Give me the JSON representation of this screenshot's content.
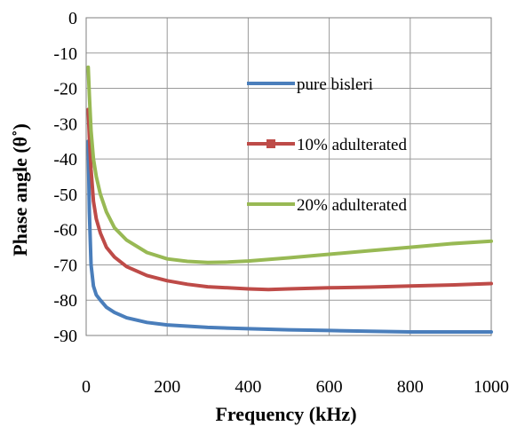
{
  "chart_data": {
    "type": "line",
    "title": "",
    "xlabel": "Frequency (kHz)",
    "ylabel": "Phase angle (θ˚)",
    "xlim": [
      0,
      1000
    ],
    "ylim": [
      -90,
      0
    ],
    "xticks": [
      0,
      200,
      400,
      600,
      800,
      1000
    ],
    "yticks": [
      0,
      -10,
      -20,
      -30,
      -40,
      -50,
      -60,
      -70,
      -80,
      -90
    ],
    "grid": true,
    "legend_position": "center-right",
    "series": [
      {
        "name": "pure bisleri",
        "color": "#4a7ebb",
        "x": [
          5,
          8,
          12,
          18,
          25,
          35,
          50,
          70,
          100,
          150,
          200,
          300,
          400,
          500,
          600,
          700,
          800,
          900,
          1000
        ],
        "y": [
          -35,
          -55,
          -70,
          -76,
          -78.5,
          -80,
          -82,
          -83.5,
          -85,
          -86.3,
          -87,
          -87.7,
          -88.1,
          -88.4,
          -88.6,
          -88.8,
          -89,
          -89,
          -89
        ]
      },
      {
        "name": "10% adulterated",
        "color": "#be4b48",
        "x": [
          5,
          8,
          12,
          18,
          25,
          35,
          50,
          70,
          100,
          150,
          200,
          250,
          300,
          400,
          450,
          500,
          600,
          700,
          800,
          900,
          1000
        ],
        "y": [
          -26,
          -34,
          -43,
          -52,
          -57,
          -61,
          -65,
          -67.8,
          -70.5,
          -73,
          -74.5,
          -75.5,
          -76.2,
          -76.8,
          -77,
          -76.8,
          -76.5,
          -76.3,
          -76,
          -75.7,
          -75.3
        ]
      },
      {
        "name": "20% adulterated",
        "color": "#98b954",
        "x": [
          5,
          8,
          12,
          18,
          25,
          35,
          50,
          70,
          100,
          150,
          200,
          250,
          300,
          350,
          400,
          500,
          600,
          700,
          800,
          900,
          1000
        ],
        "y": [
          -14,
          -22,
          -32,
          -40,
          -45,
          -50,
          -55,
          -59.5,
          -63,
          -66.5,
          -68.3,
          -69,
          -69.3,
          -69.2,
          -68.9,
          -68,
          -67,
          -66,
          -65,
          -64,
          -63.3
        ]
      }
    ]
  }
}
